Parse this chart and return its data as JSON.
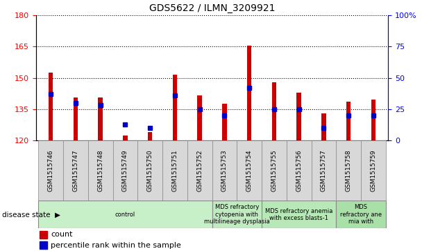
{
  "title": "GDS5622 / ILMN_3209921",
  "samples": [
    "GSM1515746",
    "GSM1515747",
    "GSM1515748",
    "GSM1515749",
    "GSM1515750",
    "GSM1515751",
    "GSM1515752",
    "GSM1515753",
    "GSM1515754",
    "GSM1515755",
    "GSM1515756",
    "GSM1515757",
    "GSM1515758",
    "GSM1515759"
  ],
  "count_values": [
    152.5,
    140.5,
    140.5,
    122.5,
    124.0,
    151.5,
    141.5,
    137.5,
    165.5,
    148.0,
    143.0,
    133.0,
    138.5,
    139.5
  ],
  "percentile_values": [
    37,
    30,
    28,
    13,
    10,
    36,
    25,
    20,
    42,
    25,
    25,
    10,
    20,
    20
  ],
  "ymin": 120,
  "ymax": 180,
  "left_yticks": [
    120,
    135,
    150,
    165,
    180
  ],
  "right_yticks": [
    0,
    25,
    50,
    75,
    100
  ],
  "disease_groups": [
    {
      "label": "control",
      "start": 0,
      "end": 7
    },
    {
      "label": "MDS refractory\ncytopenia with\nmultilineage dysplasia",
      "start": 7,
      "end": 9
    },
    {
      "label": "MDS refractory anemia\nwith excess blasts-1",
      "start": 9,
      "end": 12
    },
    {
      "label": "MDS\nrefractory ane\nmia with",
      "start": 12,
      "end": 14
    }
  ],
  "group_colors": [
    "#c8f0c8",
    "#c0eac0",
    "#b8e8b8",
    "#a8e0a8"
  ],
  "bar_color": "#cc0000",
  "percentile_color": "#0000cc",
  "bar_width": 0.18,
  "count_label": "count",
  "percentile_label": "percentile rank within the sample",
  "disease_state_label": "disease state"
}
